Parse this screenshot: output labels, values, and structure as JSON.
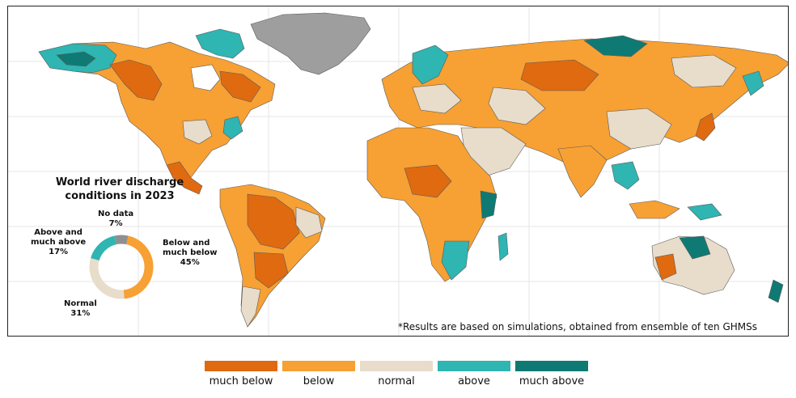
{
  "pie": {
    "title_line1": "World river discharge",
    "title_line2": "conditions in 2023",
    "segments": [
      {
        "key": "below",
        "label_line1": "Below and",
        "label_line2": "much below",
        "percent_text": "45%",
        "value": 45,
        "color": "#f7a033"
      },
      {
        "key": "normal",
        "label_line1": "Normal",
        "label_line2": "",
        "percent_text": "31%",
        "value": 31,
        "color": "#e8dccb"
      },
      {
        "key": "above",
        "label_line1": "Above and",
        "label_line2": "much above",
        "percent_text": "17%",
        "value": 17,
        "color": "#2fb5b2"
      },
      {
        "key": "nodata",
        "label_line1": "No data",
        "label_line2": "",
        "percent_text": "7%",
        "value": 7,
        "color": "#8f8f8f"
      }
    ]
  },
  "note": "*Results are based on simulations, obtained from ensemble of ten GHMSs",
  "legend": [
    {
      "label": "much below",
      "color": "#e06a10"
    },
    {
      "label": "below",
      "color": "#f7a033"
    },
    {
      "label": "normal",
      "color": "#e8dccb"
    },
    {
      "label": "above",
      "color": "#2fb5b2"
    },
    {
      "label": "much above",
      "color": "#0f7a73"
    }
  ],
  "colors": {
    "no_data": "#9e9e9e",
    "border": "#5a5a5a",
    "frame": "#222222"
  }
}
